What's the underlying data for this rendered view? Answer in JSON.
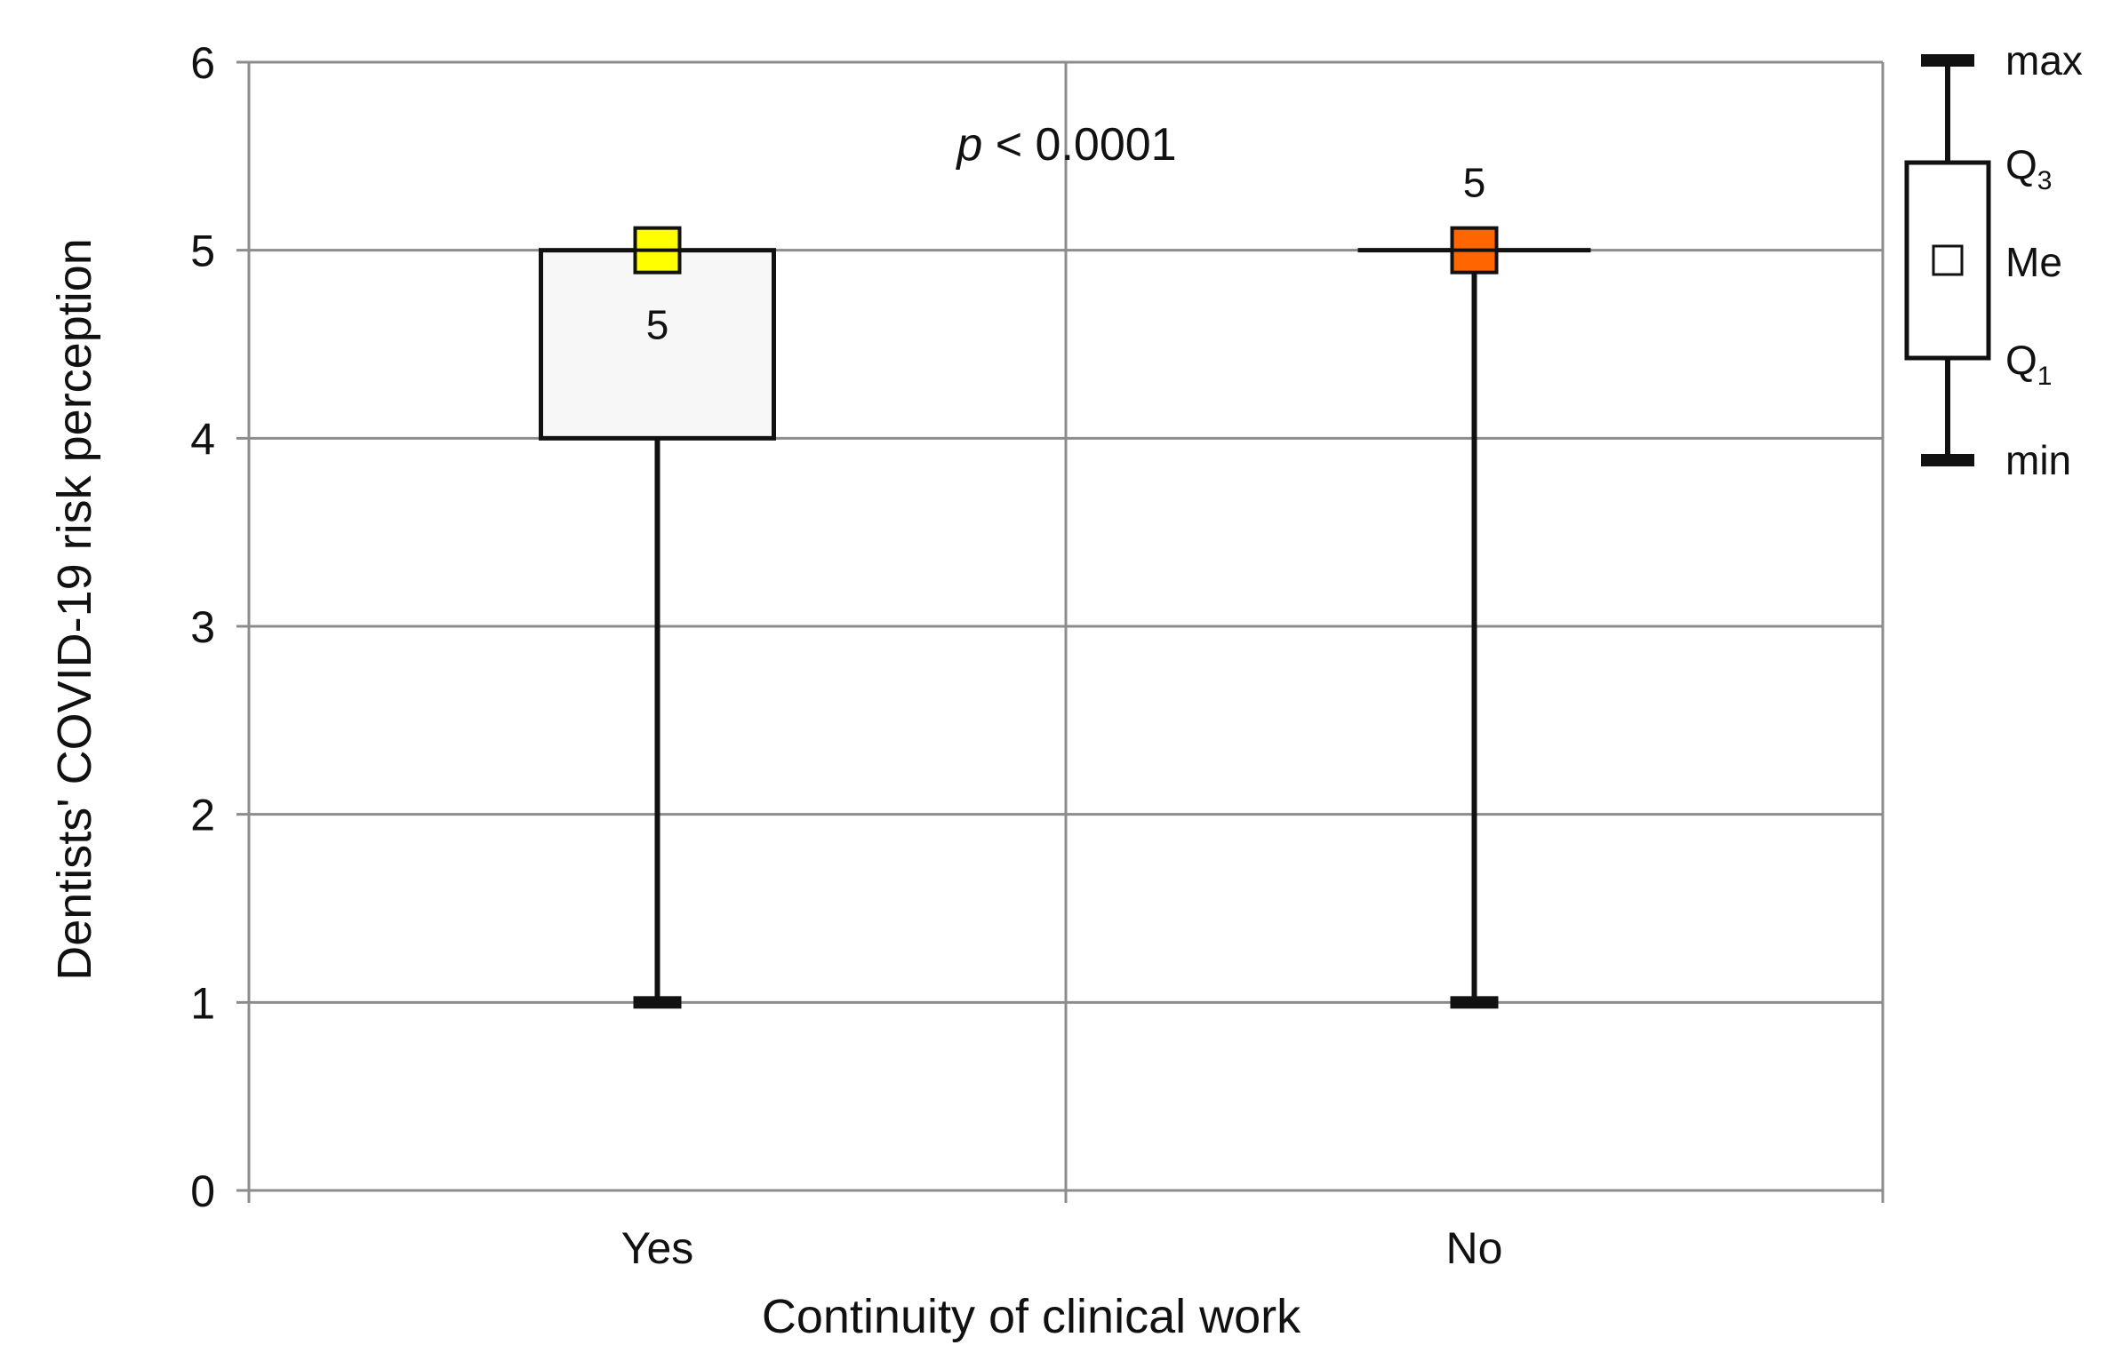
{
  "chart_data": {
    "type": "boxplot",
    "xlabel": "Continuity of clinical work",
    "ylabel": "Dentists' COVID-19 risk perception",
    "ylim": [
      0,
      6
    ],
    "yticks": [
      "0",
      "1",
      "2",
      "3",
      "4",
      "5",
      "6"
    ],
    "categories": [
      "Yes",
      "No"
    ],
    "boxes": [
      {
        "category": "Yes",
        "min": 1,
        "q1": 4,
        "median": 5,
        "q3": 5,
        "max": 5,
        "median_label": "5",
        "median_color": "#ffff00"
      },
      {
        "category": "No",
        "min": 1,
        "q1": 5,
        "median": 5,
        "q3": 5,
        "max": 5,
        "median_label": "5",
        "median_color": "#ff6600"
      }
    ],
    "annotation": {
      "italic": "p",
      "text": " < 0.0001"
    },
    "grid": true,
    "legend": {
      "position": "right",
      "items": {
        "max": "max",
        "q3": "Q",
        "q3_sub": "3",
        "me": "Me",
        "q1": "Q",
        "q1_sub": "1",
        "min": "min"
      }
    }
  }
}
